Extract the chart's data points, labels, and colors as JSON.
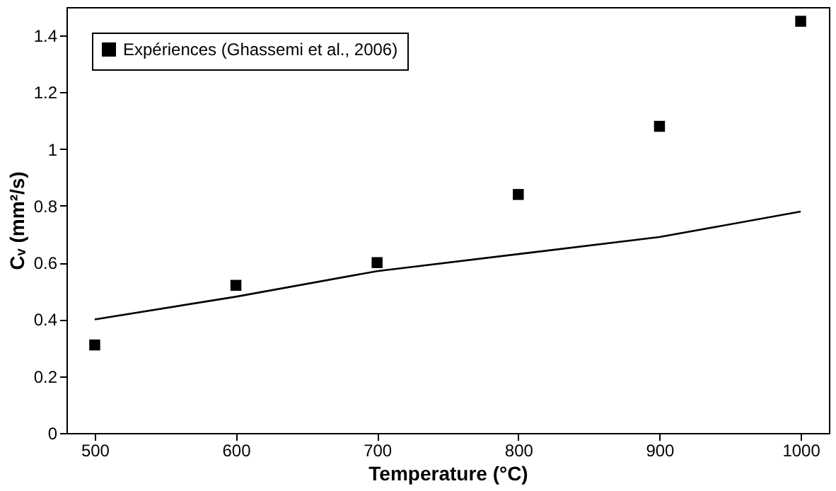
{
  "chart_data": {
    "type": "scatter",
    "xlabel": "Temperature (°C)",
    "ylabel": "Cᵥ (mm²/s)",
    "x": [
      500,
      600,
      700,
      800,
      900,
      1000
    ],
    "series": [
      {
        "name": "Expériences (Ghassemi et al., 2006)",
        "color": "#000000",
        "marker": "square",
        "values": [
          0.31,
          0.52,
          0.6,
          0.84,
          1.08,
          1.45
        ]
      },
      {
        "type": "line",
        "color": "#000000",
        "line_style": "solid",
        "values": [
          0.4,
          0.48,
          0.57,
          0.63,
          0.69,
          0.78
        ]
      }
    ],
    "xlim": [
      480,
      1020
    ],
    "xticks": [
      500,
      600,
      700,
      800,
      900,
      1000
    ],
    "ylim": [
      0,
      1.5
    ],
    "yticks": [
      0,
      0.2,
      0.4,
      0.6,
      0.8,
      1,
      1.2,
      1.4
    ],
    "grid": false,
    "legend": "top left"
  }
}
